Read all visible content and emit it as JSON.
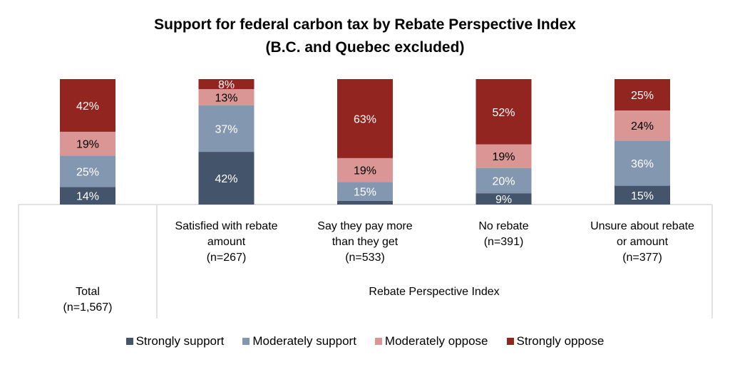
{
  "chart_data": {
    "type": "bar",
    "stacked": true,
    "percent_stacked": true,
    "title": "Support for federal carbon tax by Rebate Perspective Index",
    "subtitle": "(B.C. and Quebec excluded)",
    "xlabel": "",
    "ylabel": "",
    "ylim": [
      0,
      100
    ],
    "grid": false,
    "legend_position": "bottom",
    "categories": [
      {
        "lines": [
          "Total",
          "(n=1,567)"
        ],
        "group": ""
      },
      {
        "lines": [
          "Satisfied with rebate",
          "amount",
          "(n=267)"
        ],
        "group": "Rebate Perspective Index"
      },
      {
        "lines": [
          "Say they pay more",
          "than they get",
          "(n=533)"
        ],
        "group": "Rebate Perspective Index"
      },
      {
        "lines": [
          "No rebate",
          "(n=391)"
        ],
        "group": "Rebate Perspective Index"
      },
      {
        "lines": [
          "Unsure about rebate",
          "or amount",
          "(n=377)"
        ],
        "group": "Rebate Perspective Index"
      }
    ],
    "group_label": "Rebate Perspective Index",
    "series": [
      {
        "name": "Strongly support",
        "color": "#44546A",
        "label_color": "#FFFFFF",
        "values": [
          14,
          42,
          3,
          9,
          15
        ],
        "labels": [
          "14%",
          "42%",
          "",
          "9%",
          "15%"
        ]
      },
      {
        "name": "Moderately support",
        "color": "#8497B0",
        "label_color": "#FFFFFF",
        "values": [
          25,
          37,
          15,
          20,
          36
        ],
        "labels": [
          "25%",
          "37%",
          "15%",
          "20%",
          "36%"
        ]
      },
      {
        "name": "Moderately oppose",
        "color": "#DA9694",
        "label_color": "#000000",
        "values": [
          19,
          13,
          19,
          19,
          24
        ],
        "labels": [
          "19%",
          "13%",
          "19%",
          "19%",
          "24%"
        ]
      },
      {
        "name": "Strongly oppose",
        "color": "#922520",
        "label_color": "#FFFFFF",
        "values": [
          42,
          8,
          63,
          52,
          25
        ],
        "labels": [
          "42%",
          "8%",
          "63%",
          "52%",
          "25%"
        ]
      }
    ]
  }
}
